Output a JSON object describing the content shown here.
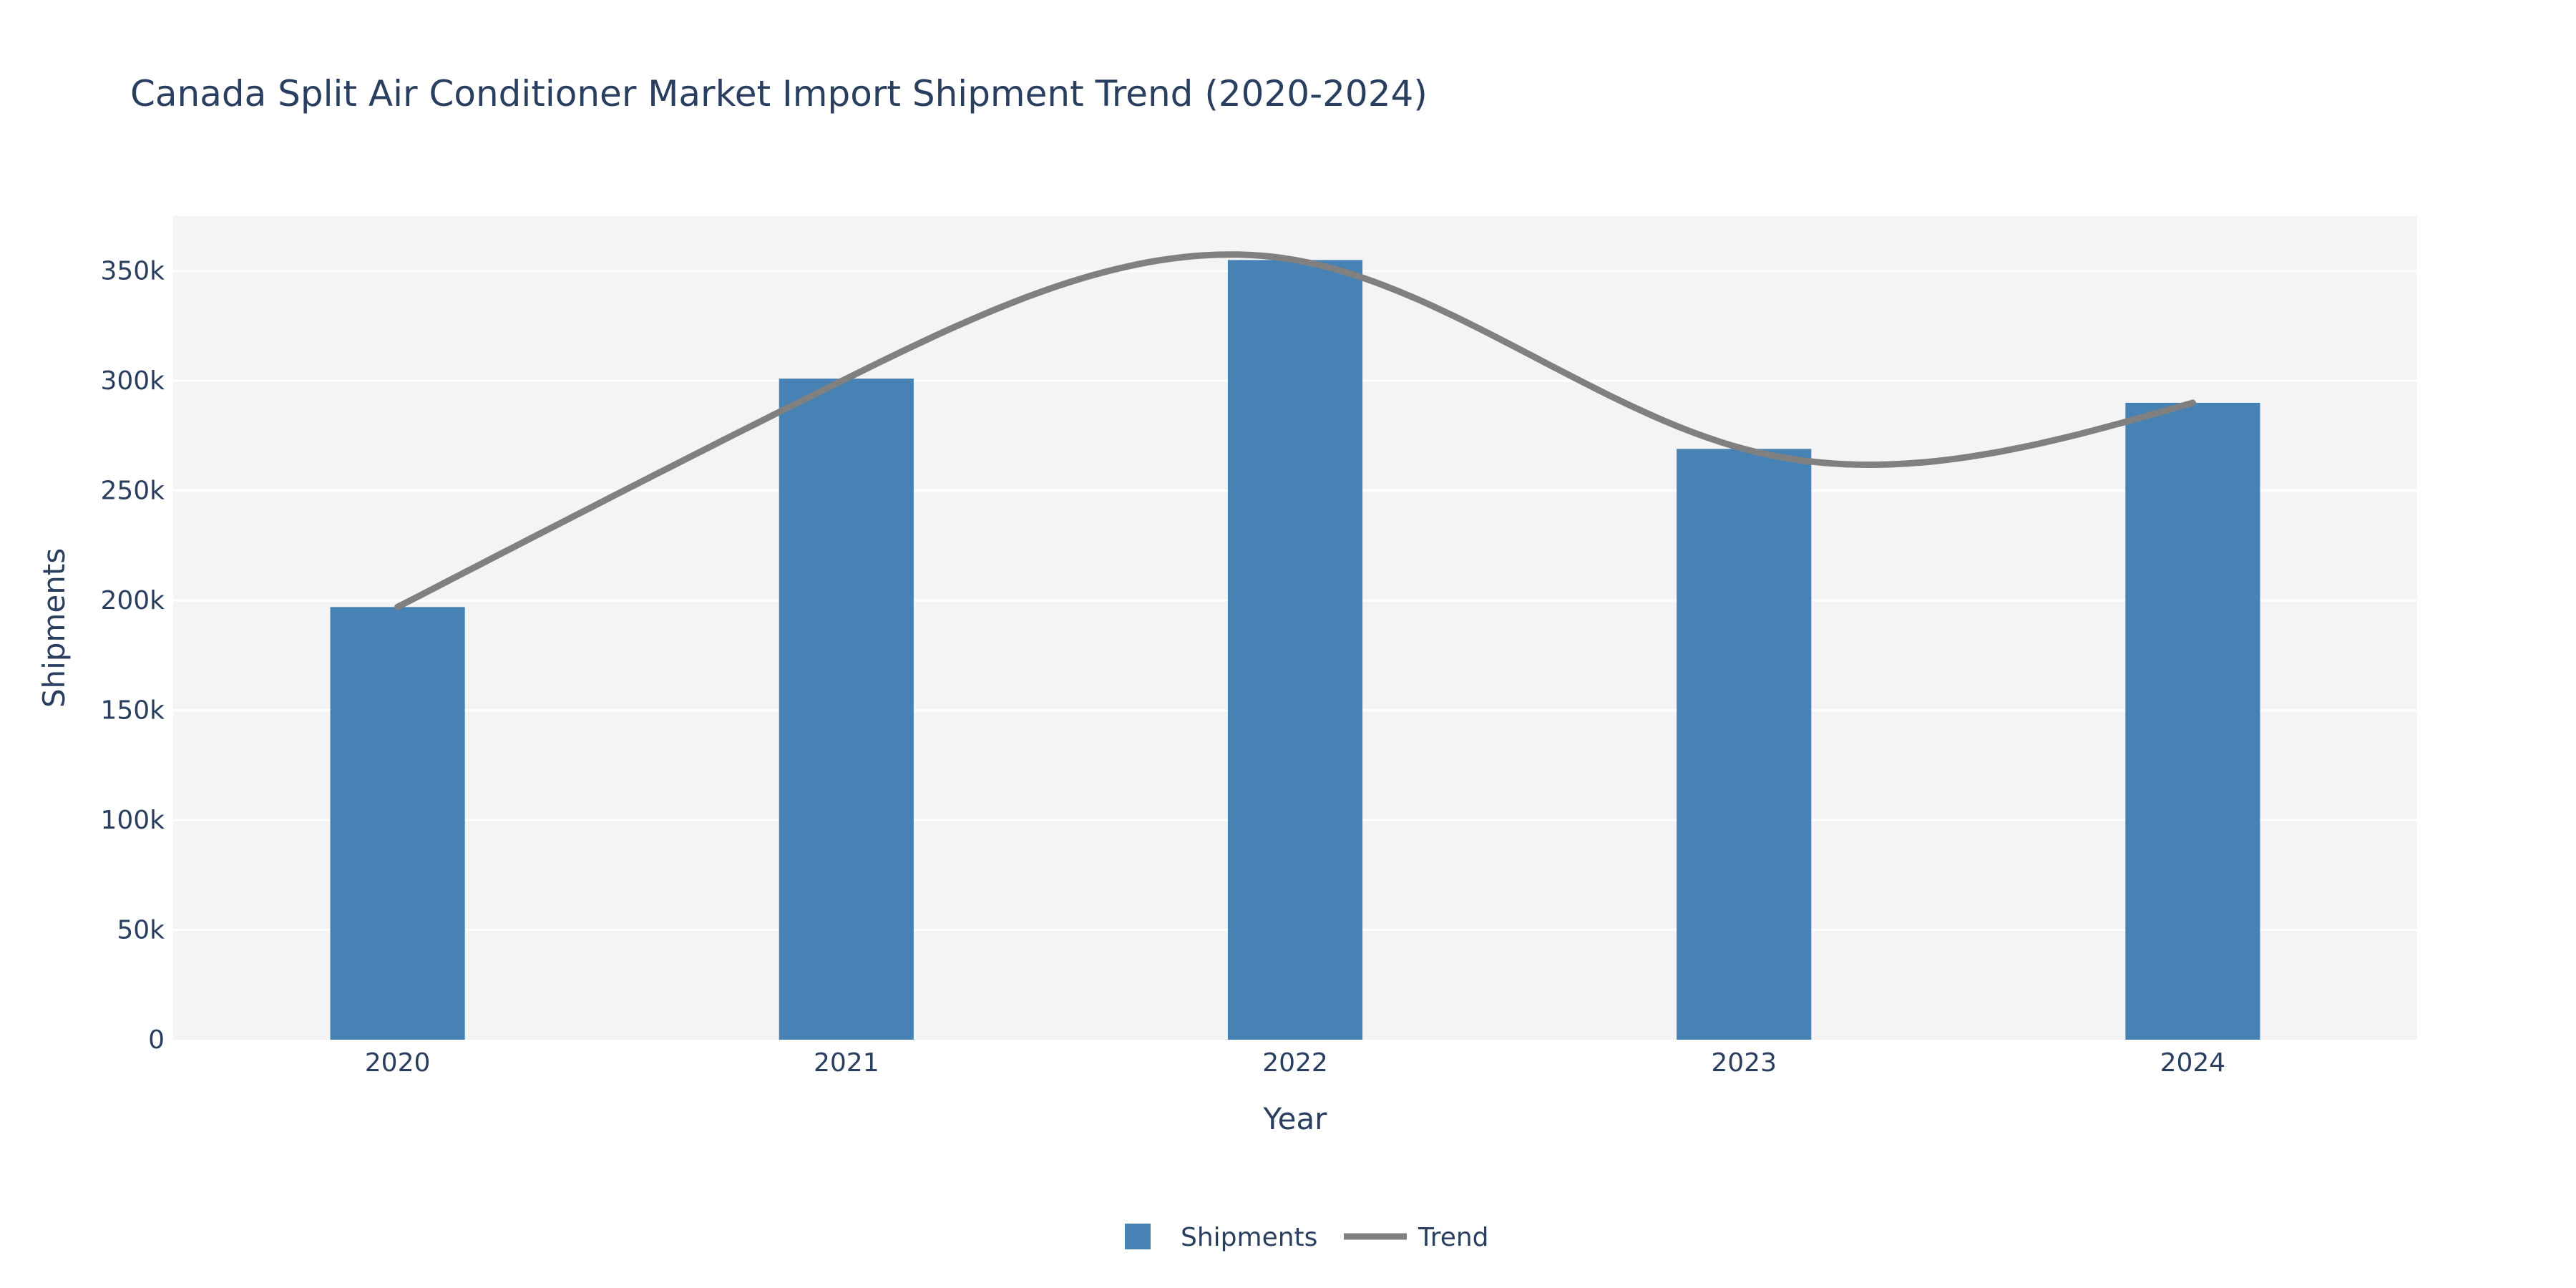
{
  "chart_data": {
    "type": "bar",
    "title": "Canada Split Air Conditioner Market Import Shipment Trend (2020-2024)",
    "xlabel": "Year",
    "ylabel": "Shipments",
    "categories": [
      "2020",
      "2021",
      "2022",
      "2023",
      "2024"
    ],
    "ylim": [
      0,
      375000
    ],
    "yticks": [
      0,
      50000,
      100000,
      150000,
      200000,
      250000,
      300000,
      350000
    ],
    "ytick_labels": [
      "0",
      "50k",
      "100k",
      "150k",
      "200k",
      "250k",
      "300k",
      "350k"
    ],
    "grid": true,
    "legend_position": "bottom-center",
    "series": [
      {
        "name": "Shipments",
        "type": "bar",
        "color": "#4682b4",
        "values": [
          197000,
          301000,
          355000,
          269000,
          290000
        ]
      },
      {
        "name": "Trend",
        "type": "line",
        "smooth": true,
        "color": "#808080",
        "values": [
          197000,
          301000,
          355000,
          269000,
          290000
        ]
      }
    ],
    "plot_background": "#f4f4f4",
    "text_color": "#2a3f5f"
  }
}
